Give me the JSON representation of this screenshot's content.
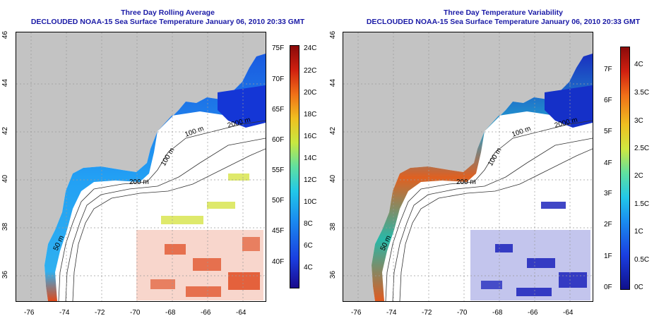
{
  "colors": {
    "land": "#c3c3c3",
    "title": "#1a1aa6",
    "grid": "#9a9a9a",
    "contour": "#333333"
  },
  "panels": [
    {
      "title_line1": "Three Day Rolling Average",
      "title_line2": "DECLOUDED NOAA-15 Sea Surface Temperature January 06, 2010 20:33 GMT",
      "colorbar": {
        "left_labels": [
          "40F",
          "45F",
          "50F",
          "55F",
          "60F",
          "65F",
          "70F",
          "75F"
        ],
        "right_labels": [
          "4C",
          "6C",
          "8C",
          "10C",
          "12C",
          "14C",
          "16C",
          "18C",
          "20C",
          "22C",
          "24C"
        ]
      }
    },
    {
      "title_line1": "Three Day Temperature Variability",
      "title_line2": "DECLOUDED NOAA-15 Sea Surface Temperature January 06, 2010 20:33 GMT",
      "colorbar": {
        "left_labels": [
          "0F",
          "1F",
          "2F",
          "3F",
          "4F",
          "5F",
          "6F",
          "7F"
        ],
        "right_labels": [
          "0C",
          "0.5C",
          "1C",
          "1.5C",
          "2C",
          "2.5C",
          "3C",
          "3.5C",
          "4C"
        ]
      }
    }
  ],
  "axes": {
    "x_ticks": [
      "-76",
      "-74",
      "-72",
      "-70",
      "-68",
      "-66",
      "-64"
    ],
    "y_ticks": [
      "36",
      "38",
      "40",
      "42",
      "44",
      "46"
    ]
  },
  "contour_labels": [
    "50 m",
    "100 m",
    "200 m",
    "2000 m",
    "100 m",
    "50 m"
  ]
}
